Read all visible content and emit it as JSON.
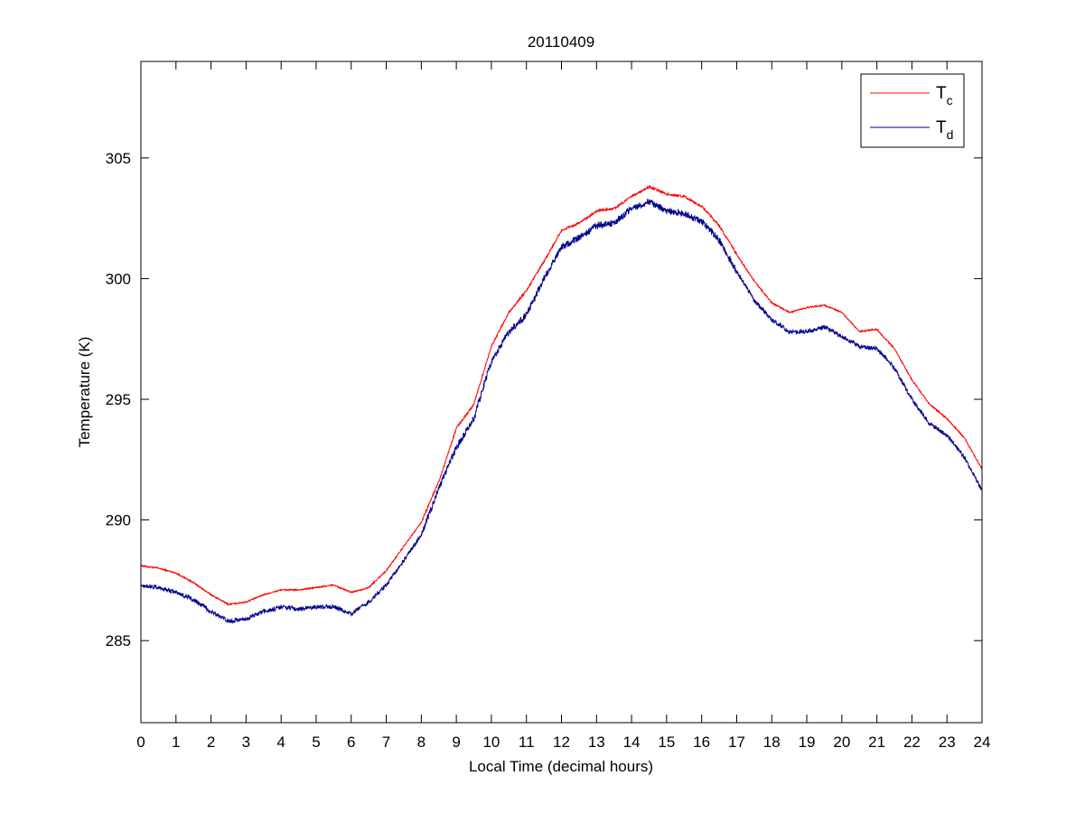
{
  "chart_data": {
    "type": "line",
    "title": "20110409",
    "xlabel": "Local Time (decimal hours)",
    "ylabel": "Temperature (K)",
    "xlim": [
      0,
      24
    ],
    "ylim": [
      281.6,
      309
    ],
    "xticks": [
      0,
      1,
      2,
      3,
      4,
      5,
      6,
      7,
      8,
      9,
      10,
      11,
      12,
      13,
      14,
      15,
      16,
      17,
      18,
      19,
      20,
      21,
      22,
      23,
      24
    ],
    "yticks": [
      285,
      290,
      295,
      300,
      305
    ],
    "grid": false,
    "legend_position": "top-right",
    "series": [
      {
        "name": "T",
        "subscript": "c",
        "color": "#ff0000",
        "x": [
          0,
          0.5,
          1,
          1.5,
          2,
          2.5,
          3,
          3.5,
          4,
          4.5,
          5,
          5.5,
          6,
          6.5,
          7,
          7.5,
          8,
          8.5,
          9,
          9.5,
          10,
          10.5,
          11,
          11.5,
          12,
          12.5,
          13,
          13.5,
          14,
          14.5,
          15,
          15.5,
          16,
          16.5,
          17,
          17.5,
          18,
          18.5,
          19,
          19.5,
          20,
          20.5,
          21,
          21.5,
          22,
          22.5,
          23,
          23.5,
          24
        ],
        "values": [
          288.1,
          288.0,
          287.8,
          287.4,
          286.9,
          286.5,
          286.6,
          286.9,
          287.1,
          287.1,
          287.2,
          287.3,
          287.0,
          287.2,
          287.9,
          288.9,
          289.9,
          291.6,
          293.8,
          294.8,
          297.2,
          298.6,
          299.5,
          300.7,
          302.0,
          302.3,
          302.8,
          302.9,
          303.4,
          303.8,
          303.5,
          303.4,
          303.0,
          302.2,
          301.0,
          299.9,
          299.0,
          298.6,
          298.8,
          298.9,
          298.6,
          297.8,
          297.9,
          297.1,
          295.8,
          294.8,
          294.2,
          293.4,
          292.1
        ]
      },
      {
        "name": "T",
        "subscript": "d",
        "color": "#00008b",
        "x": [
          0,
          0.5,
          1,
          1.5,
          2,
          2.5,
          3,
          3.5,
          4,
          4.5,
          5,
          5.5,
          6,
          6.5,
          7,
          7.5,
          8,
          8.5,
          9,
          9.5,
          10,
          10.5,
          11,
          11.5,
          12,
          12.5,
          13,
          13.5,
          14,
          14.5,
          15,
          15.5,
          16,
          16.5,
          17,
          17.5,
          18,
          18.5,
          19,
          19.5,
          20,
          20.5,
          21,
          21.5,
          22,
          22.5,
          23,
          23.5,
          24
        ],
        "values": [
          287.3,
          287.2,
          287.0,
          286.7,
          286.2,
          285.8,
          285.9,
          286.2,
          286.4,
          286.3,
          286.4,
          286.4,
          286.1,
          286.6,
          287.3,
          288.3,
          289.4,
          291.3,
          293.0,
          294.2,
          296.6,
          297.8,
          298.5,
          300.0,
          301.3,
          301.7,
          302.2,
          302.3,
          302.9,
          303.2,
          302.8,
          302.7,
          302.4,
          301.6,
          300.3,
          299.1,
          298.3,
          297.8,
          297.8,
          298.0,
          297.6,
          297.2,
          297.1,
          296.3,
          295.0,
          294.0,
          293.5,
          292.6,
          291.2
        ]
      }
    ]
  }
}
